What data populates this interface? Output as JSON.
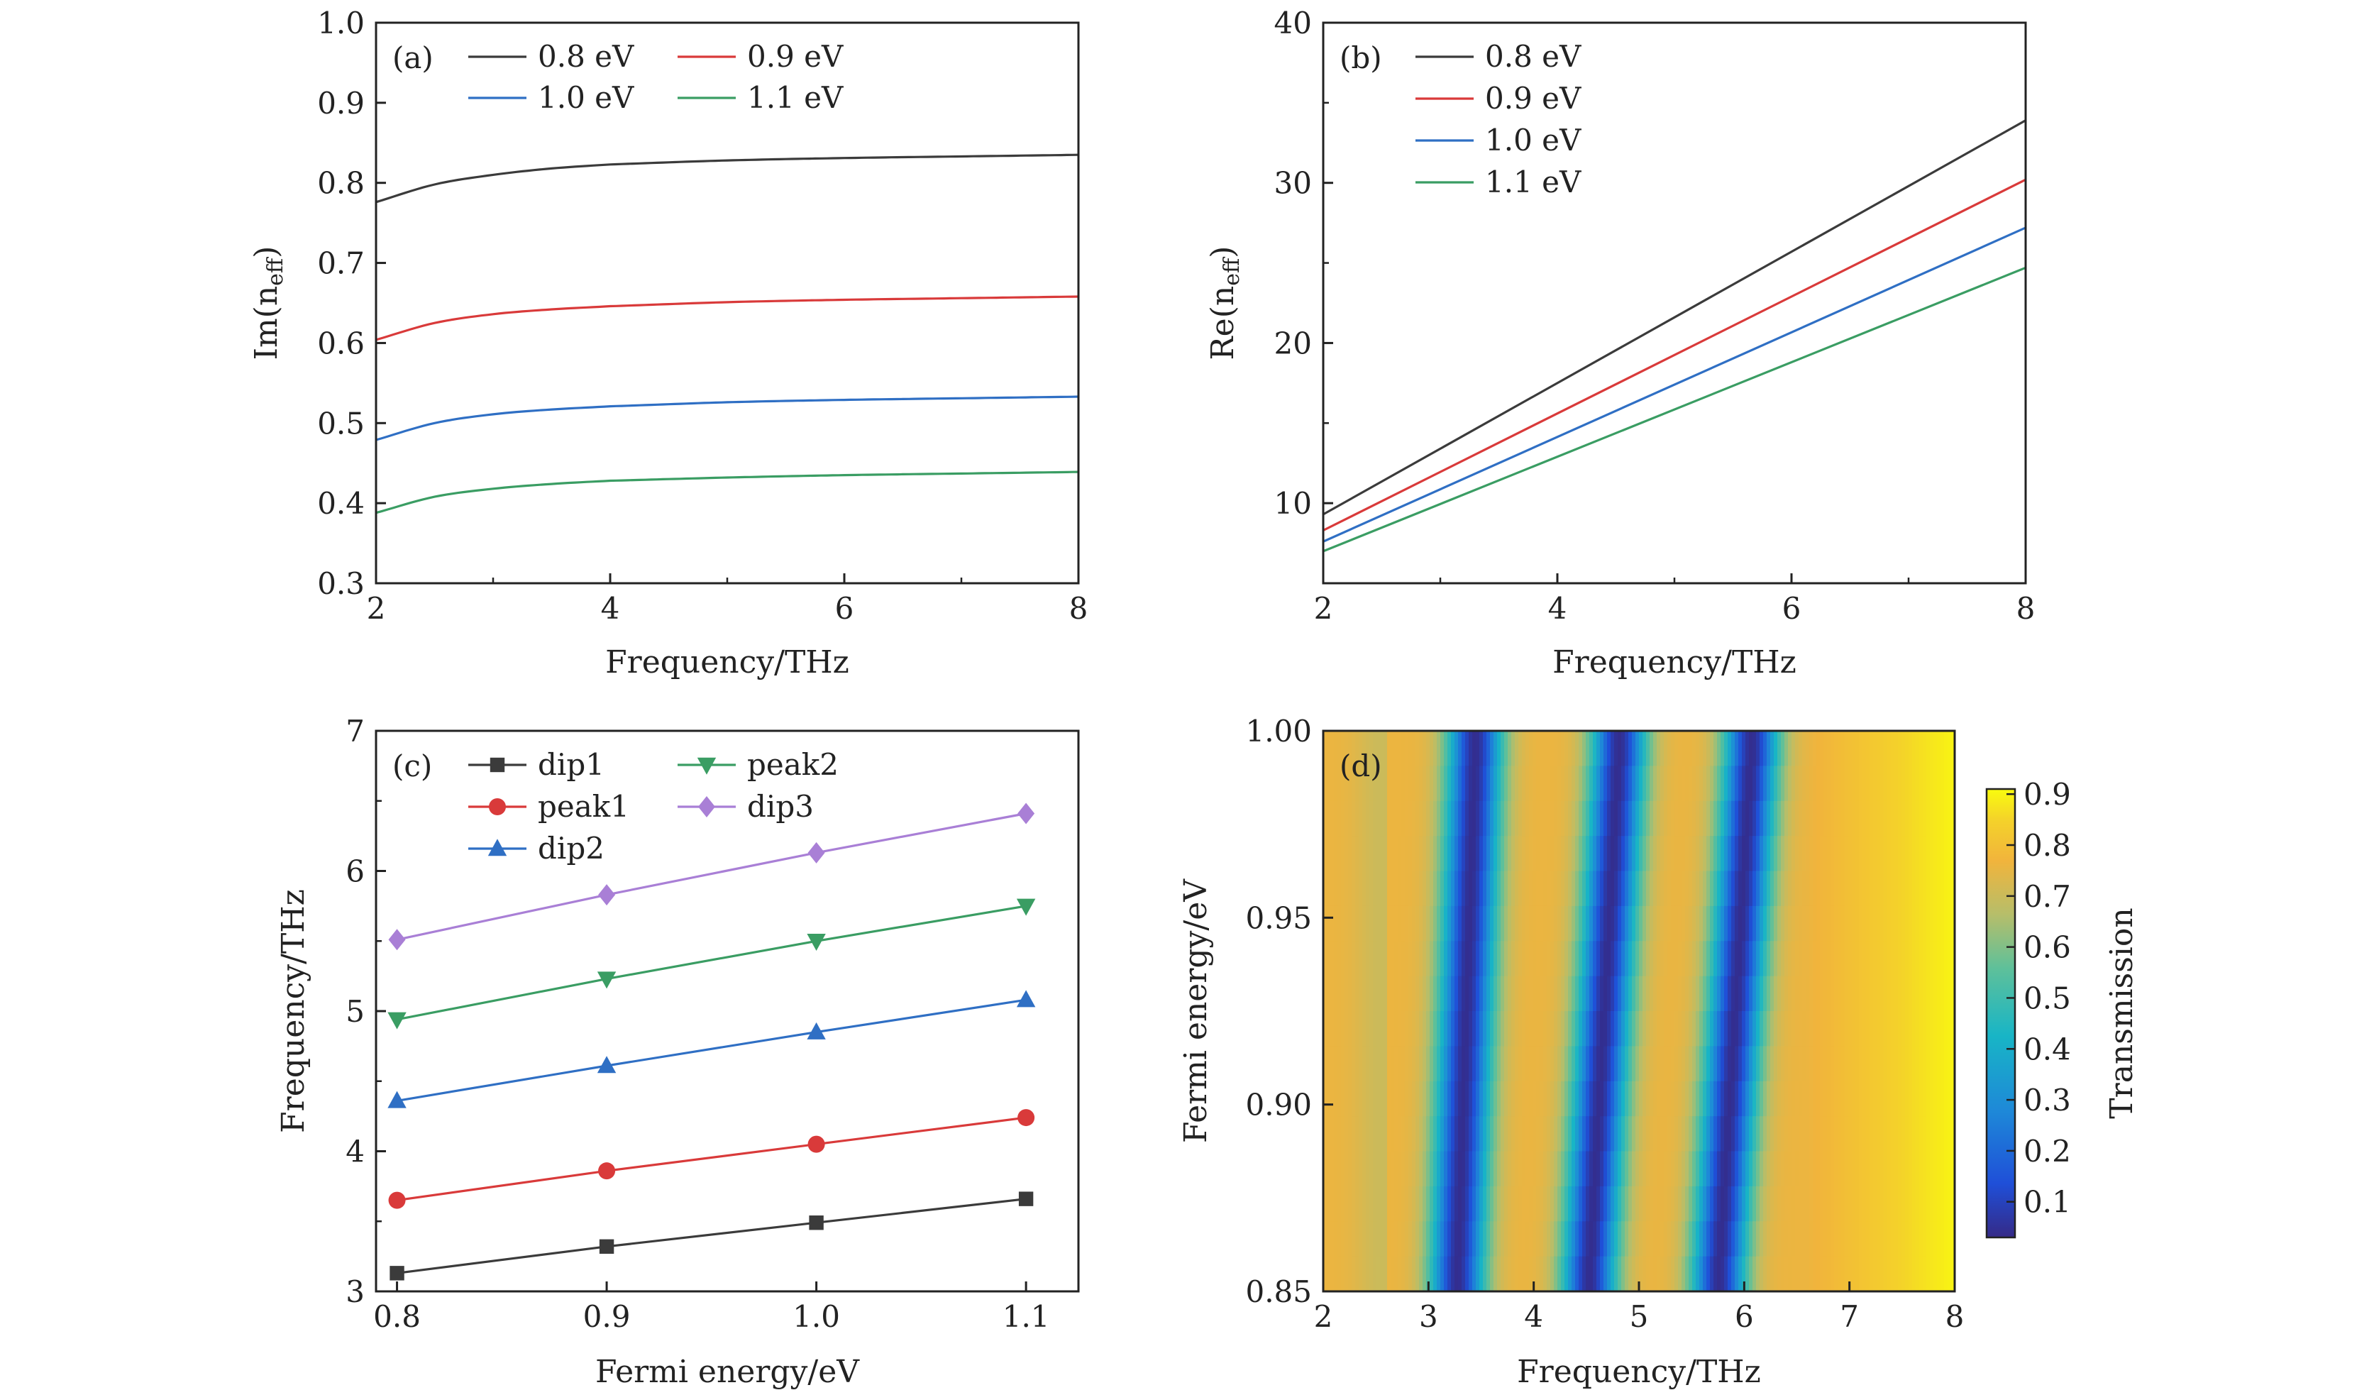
{
  "chart_data": [
    {
      "panel": "(a)",
      "type": "line",
      "xlabel": "Frequency/THz",
      "ylabel": "Im(n",
      "ylabel_sub": "eff",
      "ylabel_close": ")",
      "xlim": [
        2,
        8
      ],
      "ylim": [
        0.3,
        1.0
      ],
      "xticks": [
        2,
        4,
        6,
        8
      ],
      "xtick_labels": [
        "2",
        "4",
        "6",
        "8"
      ],
      "yticks": [
        0.3,
        0.4,
        0.5,
        0.6,
        0.7,
        0.8,
        0.9,
        1.0
      ],
      "ytick_labels": [
        "0.3",
        "0.4",
        "0.5",
        "0.6",
        "0.7",
        "0.8",
        "0.9",
        "1.0"
      ],
      "x": [
        2,
        2.5,
        3,
        3.5,
        4,
        5,
        6,
        7,
        8
      ],
      "series": [
        {
          "name": "0.8 eV",
          "color": "#3b3b3b",
          "values": [
            0.776,
            0.798,
            0.81,
            0.818,
            0.823,
            0.828,
            0.831,
            0.833,
            0.835
          ]
        },
        {
          "name": "0.9 eV",
          "color": "#d93a3a",
          "values": [
            0.604,
            0.625,
            0.636,
            0.642,
            0.646,
            0.651,
            0.654,
            0.656,
            0.658
          ]
        },
        {
          "name": "1.0 eV",
          "color": "#2f6fc4",
          "values": [
            0.479,
            0.5,
            0.511,
            0.517,
            0.521,
            0.526,
            0.529,
            0.531,
            0.533
          ]
        },
        {
          "name": "1.1 eV",
          "color": "#3a9d63",
          "values": [
            0.388,
            0.408,
            0.418,
            0.424,
            0.428,
            0.432,
            0.435,
            0.437,
            0.439
          ]
        }
      ]
    },
    {
      "panel": "(b)",
      "type": "line",
      "xlabel": "Frequency/THz",
      "ylabel": "Re(n",
      "ylabel_sub": "eff",
      "ylabel_close": ")",
      "xlim": [
        2,
        8
      ],
      "ylim": [
        5,
        40
      ],
      "xticks": [
        2,
        4,
        6,
        8
      ],
      "xtick_labels": [
        "2",
        "4",
        "6",
        "8"
      ],
      "yticks": [
        10,
        20,
        30,
        40
      ],
      "ytick_labels": [
        "10",
        "20",
        "30",
        "40"
      ],
      "x": [
        2,
        8
      ],
      "series": [
        {
          "name": "0.8 eV",
          "color": "#3b3b3b",
          "values": [
            9.3,
            33.9
          ]
        },
        {
          "name": "0.9 eV",
          "color": "#d93a3a",
          "values": [
            8.3,
            30.2
          ]
        },
        {
          "name": "1.0 eV",
          "color": "#2f6fc4",
          "values": [
            7.6,
            27.2
          ]
        },
        {
          "name": "1.1 eV",
          "color": "#3a9d63",
          "values": [
            7.0,
            24.7
          ]
        }
      ]
    },
    {
      "panel": "(c)",
      "type": "line",
      "xlabel": "Fermi energy/eV",
      "ylabel": "Frequency/THz",
      "xlim": [
        0.79,
        1.125
      ],
      "ylim": [
        3,
        7
      ],
      "xticks": [
        0.8,
        0.9,
        1.0,
        1.1
      ],
      "xtick_labels": [
        "0.8",
        "0.9",
        "1.0",
        "1.1"
      ],
      "yticks": [
        3,
        4,
        5,
        6,
        7
      ],
      "ytick_labels": [
        "3",
        "4",
        "5",
        "6",
        "7"
      ],
      "x": [
        0.8,
        0.9,
        1.0,
        1.1
      ],
      "series": [
        {
          "name": "dip1",
          "color": "#3b3b3b",
          "marker": "square",
          "values": [
            3.13,
            3.32,
            3.49,
            3.66
          ]
        },
        {
          "name": "peak1",
          "color": "#d93a3a",
          "marker": "circle",
          "values": [
            3.65,
            3.86,
            4.05,
            4.24
          ]
        },
        {
          "name": "dip2",
          "color": "#2f6fc4",
          "marker": "triangle-up",
          "values": [
            4.36,
            4.61,
            4.85,
            5.08
          ]
        },
        {
          "name": "peak2",
          "color": "#3a9d63",
          "marker": "triangle-down",
          "values": [
            4.94,
            5.23,
            5.5,
            5.75
          ]
        },
        {
          "name": "dip3",
          "color": "#a97fd6",
          "marker": "diamond",
          "values": [
            5.51,
            5.83,
            6.13,
            6.41
          ]
        }
      ]
    },
    {
      "panel": "(d)",
      "type": "heatmap",
      "xlabel": "Frequency/THz",
      "ylabel": "Fermi energy/eV",
      "colorbar_label": "Transmission",
      "xlim": [
        2,
        8
      ],
      "ylim": [
        0.85,
        1.0
      ],
      "xticks": [
        2,
        3,
        4,
        5,
        6,
        7,
        8
      ],
      "xtick_labels": [
        "2",
        "3",
        "4",
        "5",
        "6",
        "7",
        "8"
      ],
      "yticks": [
        0.85,
        0.9,
        0.95,
        1.0
      ],
      "ytick_labels": [
        "0.85",
        "0.90",
        "0.95",
        "1.00"
      ],
      "clim": [
        0.03,
        0.91
      ],
      "cticks": [
        0.1,
        0.2,
        0.3,
        0.4,
        0.5,
        0.6,
        0.7,
        0.8,
        0.9
      ],
      "ctick_labels": [
        "0.1",
        "0.2",
        "0.3",
        "0.4",
        "0.5",
        "0.6",
        "0.7",
        "0.8",
        "0.9"
      ],
      "dips": [
        {
          "name": "dip1",
          "freq_at_0.85": 3.27,
          "freq_at_1.00": 3.45
        },
        {
          "name": "dip2",
          "freq_at_0.85": 4.52,
          "freq_at_1.00": 4.82
        },
        {
          "name": "dip3",
          "freq_at_0.85": 5.75,
          "freq_at_1.00": 6.08
        }
      ]
    }
  ]
}
